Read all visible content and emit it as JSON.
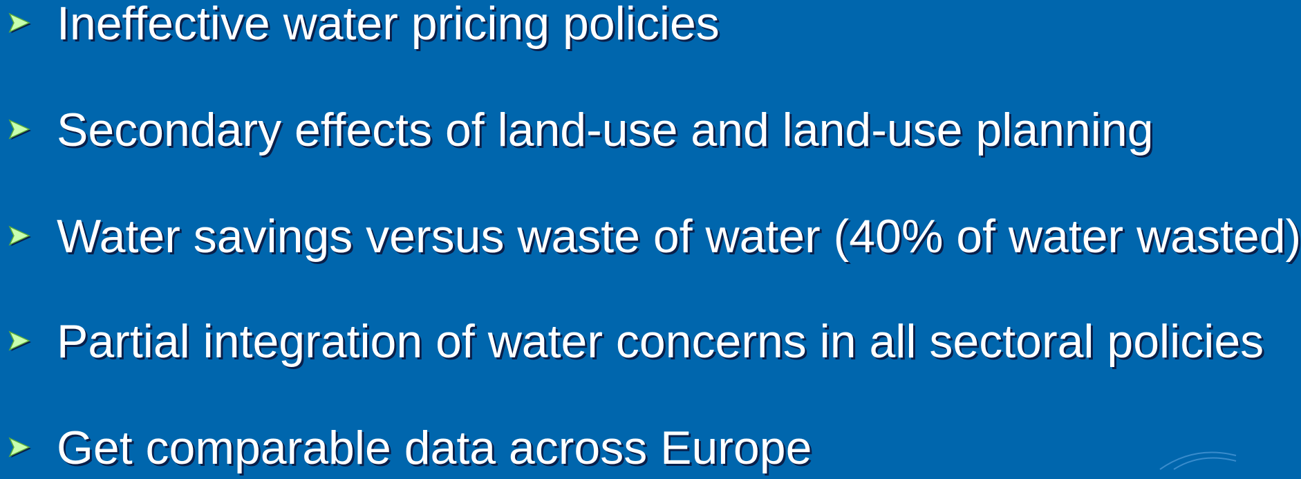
{
  "bullets": [
    "Ineffective water pricing policies",
    "Secondary effects of land-use and land-use planning",
    "Water savings versus waste of water (40% of water wasted)",
    "Partial integration of water concerns in all sectoral policies",
    "Get comparable data across Europe"
  ]
}
